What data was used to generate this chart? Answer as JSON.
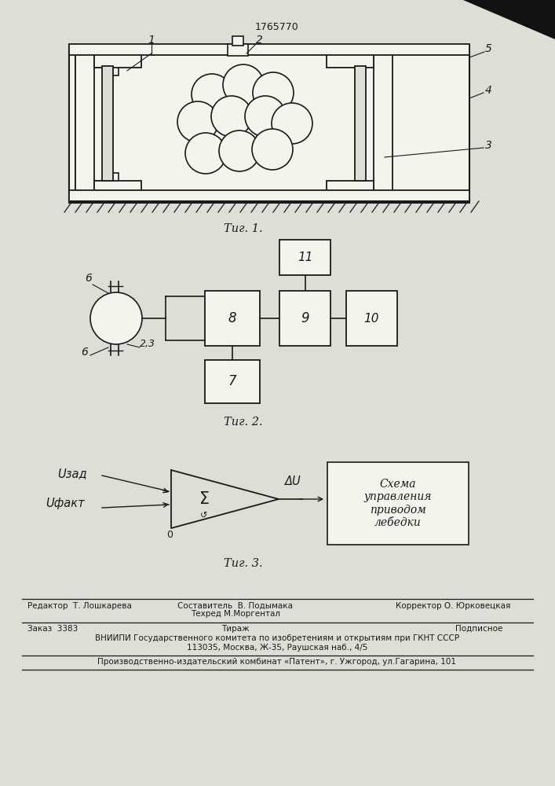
{
  "bg_color": "#deded6",
  "title_num": "1765770",
  "fig1_caption": "Τиг. 1.",
  "fig2_caption": "Τиг. 2.",
  "fig3_caption": "Τиг. 3.",
  "footer_line1_left": "Редактор  Т. Лошкарева",
  "footer_line1_center_a": "Составитель  В. Подымака",
  "footer_line1_center_b": "Техред М.Моргентал",
  "footer_line1_right": "Корректор О. Юрковецкая",
  "footer_order": "Заказ  3383",
  "footer_tirazh": "Тираж",
  "footer_podp": "Подписное",
  "footer_vniipи": "ВНИИПИ Государственного комитета по изобретениям и открытиям при ГКНТ СССР",
  "footer_addr": "113035, Москва, Ж-35, Раушская наб., 4/5",
  "footer_patent": "Производственно-издательский комбинат «Патент», г. Ужгород, ул.Гагарина, 101",
  "box_text": "Схема\nуправления\nприводом\nлебедки",
  "u_zad": "Uзад",
  "u_fakt": "Uфакт",
  "delta_u": "ΔU"
}
